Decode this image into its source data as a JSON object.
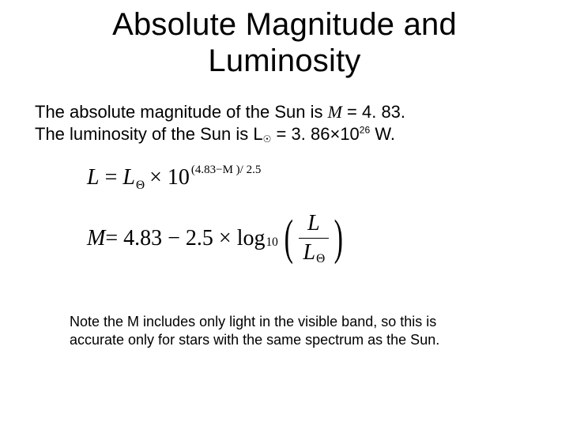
{
  "slide": {
    "background_color": "#ffffff",
    "text_color": "#000000",
    "title": {
      "line1": "Absolute Magnitude and",
      "line2": "Luminosity",
      "fontsize": 40,
      "font_family": "Arial"
    },
    "intro": {
      "line1_prefix": "The absolute magnitude of the Sun is ",
      "line1_var": "M",
      "line1_suffix": " = 4. 83.",
      "line2_prefix": "The luminosity of the Sun is L",
      "line2_sunsym": "☉",
      "line2_mid": " = 3. 86",
      "line2_mult": "×",
      "line2_base": "10",
      "line2_exp": "26",
      "line2_suffix": " W.",
      "fontsize": 22
    },
    "formulas": {
      "font_family": "Times New Roman",
      "formula1": {
        "lhs_var": "L",
        "eq": " = ",
        "rhs_var": "L",
        "rhs_sub": "Θ",
        "mult1": " × ",
        "base": "10",
        "exponent": "(4.83−M )/ 2.5",
        "fontsize": 28,
        "exp_fontsize": 15
      },
      "formula2": {
        "lhs_var": "M",
        "eq_rhs": " = 4.83 − 2.5 × log",
        "log_sub": "10",
        "paren_l": "(",
        "paren_r": ")",
        "frac_num": "L",
        "frac_den_var": "L",
        "frac_den_sub": "Θ",
        "fontsize": 28,
        "paren_fontsize": 62
      }
    },
    "note": {
      "line1": "Note the M includes only light in the visible band, so this is",
      "line2": "accurate only for stars with the same spectrum as the Sun.",
      "fontsize": 18
    }
  }
}
